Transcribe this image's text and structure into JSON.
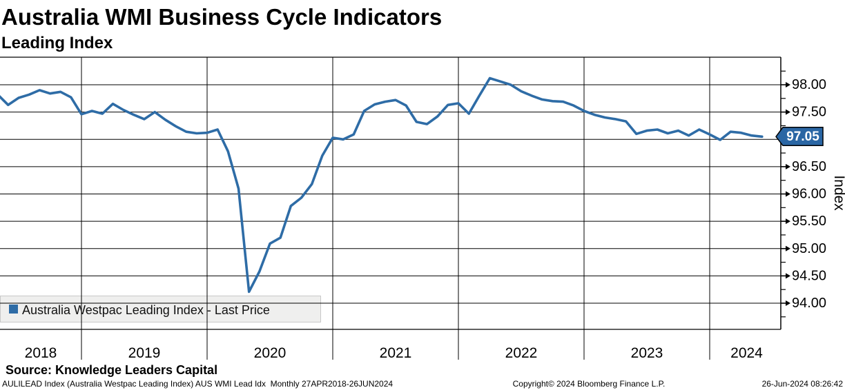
{
  "header": {
    "title": "Australia WMI Business Cycle Indicators",
    "subtitle": "Leading Index"
  },
  "chart_data": {
    "type": "line",
    "title": "Australia WMI Business Cycle Indicators",
    "subtitle": "Leading Index",
    "ylabel": "Index",
    "xlabel": "",
    "ylim": [
      93.5,
      98.5
    ],
    "y_tick_step": 0.5,
    "grid": true,
    "legend_position": "bottom-left",
    "y_ticks": [
      {
        "value": 98.0,
        "label": "98.00"
      },
      {
        "value": 97.5,
        "label": "97.50"
      },
      {
        "value": 96.5,
        "label": "96.50"
      },
      {
        "value": 96.0,
        "label": "96.00"
      },
      {
        "value": 95.5,
        "label": "95.50"
      },
      {
        "value": 95.0,
        "label": "95.00"
      },
      {
        "value": 94.5,
        "label": "94.50"
      },
      {
        "value": 94.0,
        "label": "94.00"
      }
    ],
    "last_price": {
      "value": 97.05,
      "label": "97.05",
      "box_color": "#2A66A4",
      "text_color": "#ffffff"
    },
    "x_years": [
      "2018",
      "2019",
      "2020",
      "2021",
      "2022",
      "2023",
      "2024"
    ],
    "series": [
      {
        "name": "Australia Westpac Leading Index - Last Price",
        "color": "#2E6CA6",
        "freq": "monthly",
        "start": "2018-05",
        "end": "2024-06",
        "values": [
          97.82,
          97.63,
          97.76,
          97.82,
          97.9,
          97.84,
          97.87,
          97.77,
          97.46,
          97.52,
          97.47,
          97.65,
          97.54,
          97.45,
          97.37,
          97.5,
          97.36,
          97.24,
          97.14,
          97.11,
          97.12,
          97.18,
          96.78,
          96.1,
          94.21,
          94.58,
          95.09,
          95.2,
          95.78,
          95.93,
          96.18,
          96.7,
          97.03,
          97.0,
          97.09,
          97.52,
          97.64,
          97.69,
          97.72,
          97.62,
          97.32,
          97.28,
          97.42,
          97.63,
          97.66,
          97.47,
          97.8,
          98.12,
          98.06,
          98.0,
          97.88,
          97.8,
          97.73,
          97.7,
          97.69,
          97.62,
          97.52,
          97.45,
          97.4,
          97.37,
          97.33,
          97.1,
          97.16,
          97.18,
          97.11,
          97.16,
          97.07,
          97.18,
          97.09,
          96.99,
          97.14,
          97.12,
          97.07,
          97.05
        ]
      }
    ]
  },
  "legend": {
    "label": "Australia Westpac Leading Index - Last Price",
    "marker_color": "#2E6CA6"
  },
  "source_line": "Source: Knowledge Leaders Capital",
  "footer": {
    "left": "AULILEAD Index (Australia Westpac Leading Index) AUS WMI Lead Idx  Monthly 27APR2018-26JUN2024",
    "center": "Copyright© 2024 Bloomberg Finance L.P.",
    "right": "26-Jun-2024 08:26:42"
  }
}
